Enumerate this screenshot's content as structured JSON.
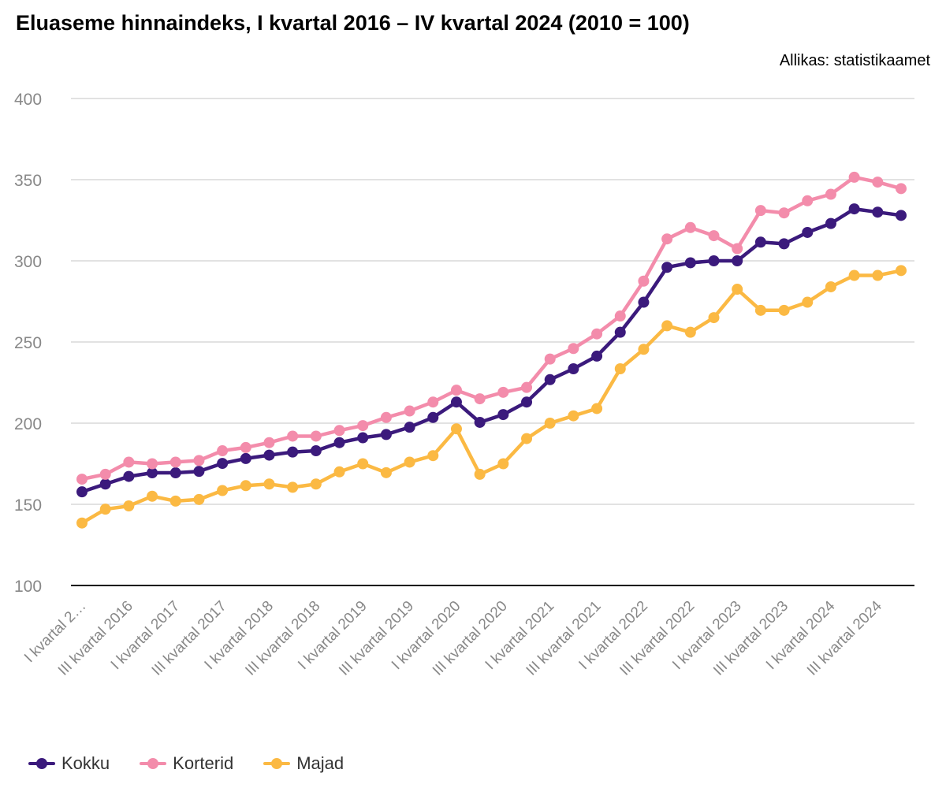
{
  "title": "Eluaseme hinnaindeks, I kvartal 2016 – IV kvartal 2024 (2010 = 100)",
  "source": "Allikas: statistikaamet",
  "chart_data": {
    "type": "line",
    "title": "Eluaseme hinnaindeks, I kvartal 2016 – IV kvartal 2024 (2010 = 100)",
    "ylim": [
      100,
      400
    ],
    "yticks": [
      100,
      150,
      200,
      250,
      300,
      350,
      400
    ],
    "grid": true,
    "legend_position": "bottom-left",
    "categories": [
      "I kvartal 2016",
      "II kvartal 2016",
      "III kvartal 2016",
      "IV kvartal 2016",
      "I kvartal 2017",
      "II kvartal 2017",
      "III kvartal 2017",
      "IV kvartal 2017",
      "I kvartal 2018",
      "II kvartal 2018",
      "III kvartal 2018",
      "IV kvartal 2018",
      "I kvartal 2019",
      "II kvartal 2019",
      "III kvartal 2019",
      "IV kvartal 2019",
      "I kvartal 2020",
      "II kvartal 2020",
      "III kvartal 2020",
      "IV kvartal 2020",
      "I kvartal 2021",
      "II kvartal 2021",
      "III kvartal 2021",
      "IV kvartal 2021",
      "I kvartal 2022",
      "II kvartal 2022",
      "III kvartal 2022",
      "IV kvartal 2022",
      "I kvartal 2023",
      "II kvartal 2023",
      "III kvartal 2023",
      "IV kvartal 2023",
      "I kvartal 2024",
      "II kvartal 2024",
      "III kvartal 2024",
      "IV kvartal 2024"
    ],
    "shown_tick_labels": [
      "I kvartal 2…",
      "III kvartal 2016",
      "I kvartal 2017",
      "III kvartal 2017",
      "I kvartal 2018",
      "III kvartal 2018",
      "I kvartal 2019",
      "III kvartal 2019",
      "I kvartal 2020",
      "III kvartal 2020",
      "I kvartal 2021",
      "III kvartal 2021",
      "I kvartal 2022",
      "III kvartal 2022",
      "I kvartal 2023",
      "III kvartal 2023",
      "I kvartal 2024",
      "III kvartal 2024"
    ],
    "series": [
      {
        "name": "Kokku",
        "color": "#3b1a7c",
        "values": [
          157.7,
          162.5,
          167.2,
          169.4,
          169.4,
          170.3,
          175.2,
          178.2,
          180.3,
          182.2,
          183.0,
          188.0,
          191.0,
          193.0,
          197.5,
          203.5,
          213.0,
          200.5,
          205.3,
          213.0,
          226.8,
          233.5,
          241.3,
          256.0,
          274.5,
          296.0,
          298.8,
          300.0,
          300.0,
          311.5,
          310.5,
          317.5,
          323.0,
          332.0,
          330.0,
          328.0
        ]
      },
      {
        "name": "Korterid",
        "color": "#f38cab",
        "values": [
          165.5,
          168.5,
          176.0,
          175.0,
          176.0,
          177.0,
          183.0,
          185.0,
          188.0,
          192.0,
          192.0,
          195.5,
          198.5,
          203.5,
          207.5,
          213.0,
          220.3,
          215.0,
          219.0,
          222.0,
          239.5,
          246.0,
          255.0,
          266.0,
          287.5,
          313.5,
          320.5,
          315.5,
          307.5,
          331.0,
          329.5,
          337.0,
          341.0,
          351.5,
          348.5,
          344.5
        ]
      },
      {
        "name": "Majad",
        "color": "#fbb943",
        "values": [
          138.5,
          147.0,
          149.0,
          155.0,
          152.0,
          153.0,
          158.5,
          161.5,
          162.5,
          160.5,
          162.5,
          170.0,
          175.0,
          169.5,
          176.0,
          180.0,
          196.5,
          168.5,
          175.0,
          190.5,
          200.0,
          204.5,
          209.0,
          233.5,
          245.5,
          260.0,
          256.0,
          265.0,
          282.5,
          269.5,
          269.5,
          274.5,
          284.0,
          291.0,
          291.0,
          294.0
        ]
      }
    ]
  }
}
